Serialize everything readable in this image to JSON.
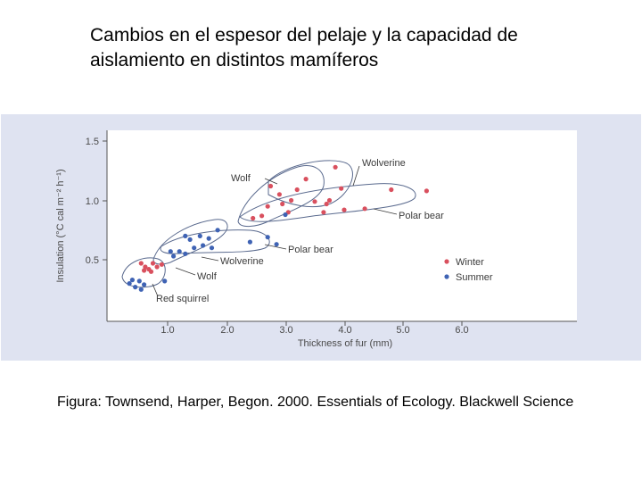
{
  "slide": {
    "title": "Cambios en el espesor del pelaje y la capacidad de aislamiento en distintos mamíferos",
    "caption": "Figura: Townsend, Harper, Begon. 2000. Essentials of Ecology. Blackwell Science"
  },
  "chart_data": {
    "type": "scatter",
    "title": "",
    "xlabel": "Thickness of fur (mm)",
    "ylabel": "Insulation (°C cal m⁻² h⁻¹)",
    "xlim": [
      0.0,
      7.3
    ],
    "ylim": [
      0.0,
      1.55
    ],
    "xticks": [
      "1.0",
      "2.0",
      "3.0",
      "4.0",
      "5.0",
      "6.0"
    ],
    "yticks": [
      "0.5",
      "1.0",
      "1.5"
    ],
    "xtick_values": [
      1.0,
      2.0,
      3.0,
      4.0,
      5.0,
      6.0
    ],
    "ytick_values": [
      0.5,
      1.0,
      1.5
    ],
    "grid": false,
    "legend_position": "bottom-right",
    "colors": {
      "Winter": "#d9505e",
      "Summer": "#3f63b4",
      "outline": "#5a6a8e",
      "axis": "#555555"
    },
    "series": [
      {
        "name": "Winter",
        "points": [
          {
            "x": 0.55,
            "y": 0.47
          },
          {
            "x": 0.62,
            "y": 0.44
          },
          {
            "x": 0.68,
            "y": 0.42
          },
          {
            "x": 0.75,
            "y": 0.47
          },
          {
            "x": 0.82,
            "y": 0.44
          },
          {
            "x": 0.9,
            "y": 0.46
          },
          {
            "x": 0.72,
            "y": 0.4
          },
          {
            "x": 0.6,
            "y": 0.41
          },
          {
            "x": 2.45,
            "y": 0.85
          },
          {
            "x": 2.6,
            "y": 0.87
          },
          {
            "x": 2.7,
            "y": 0.95
          },
          {
            "x": 2.95,
            "y": 0.97
          },
          {
            "x": 3.05,
            "y": 0.9
          },
          {
            "x": 2.9,
            "y": 1.05
          },
          {
            "x": 3.2,
            "y": 1.09
          },
          {
            "x": 3.35,
            "y": 1.18
          },
          {
            "x": 3.5,
            "y": 0.99
          },
          {
            "x": 3.7,
            "y": 0.97
          },
          {
            "x": 3.85,
            "y": 1.28
          },
          {
            "x": 3.95,
            "y": 1.1
          },
          {
            "x": 3.65,
            "y": 0.9
          },
          {
            "x": 4.0,
            "y": 0.92
          },
          {
            "x": 4.35,
            "y": 0.93
          },
          {
            "x": 3.1,
            "y": 1.0
          },
          {
            "x": 2.75,
            "y": 1.12
          },
          {
            "x": 3.75,
            "y": 1.0
          },
          {
            "x": 4.8,
            "y": 1.09
          },
          {
            "x": 5.4,
            "y": 1.08
          }
        ]
      },
      {
        "name": "Summer",
        "points": [
          {
            "x": 0.35,
            "y": 0.3
          },
          {
            "x": 0.45,
            "y": 0.27
          },
          {
            "x": 0.52,
            "y": 0.32
          },
          {
            "x": 0.6,
            "y": 0.29
          },
          {
            "x": 0.4,
            "y": 0.33
          },
          {
            "x": 0.55,
            "y": 0.25
          },
          {
            "x": 0.95,
            "y": 0.32
          },
          {
            "x": 1.1,
            "y": 0.53
          },
          {
            "x": 1.2,
            "y": 0.57
          },
          {
            "x": 1.3,
            "y": 0.55
          },
          {
            "x": 1.38,
            "y": 0.67
          },
          {
            "x": 1.45,
            "y": 0.6
          },
          {
            "x": 1.6,
            "y": 0.62
          },
          {
            "x": 1.55,
            "y": 0.7
          },
          {
            "x": 1.7,
            "y": 0.68
          },
          {
            "x": 1.75,
            "y": 0.6
          },
          {
            "x": 1.3,
            "y": 0.7
          },
          {
            "x": 1.05,
            "y": 0.57
          },
          {
            "x": 2.4,
            "y": 0.65
          },
          {
            "x": 2.7,
            "y": 0.69
          },
          {
            "x": 2.85,
            "y": 0.63
          },
          {
            "x": 1.85,
            "y": 0.75
          },
          {
            "x": 3.0,
            "y": 0.88
          }
        ]
      }
    ],
    "annotations": [
      "Wolverine",
      "Wolf",
      "Polar bear",
      "Polar bear",
      "Wolverine",
      "Wolf",
      "Red squirrel"
    ],
    "legend": [
      "Winter",
      "Summer"
    ]
  }
}
